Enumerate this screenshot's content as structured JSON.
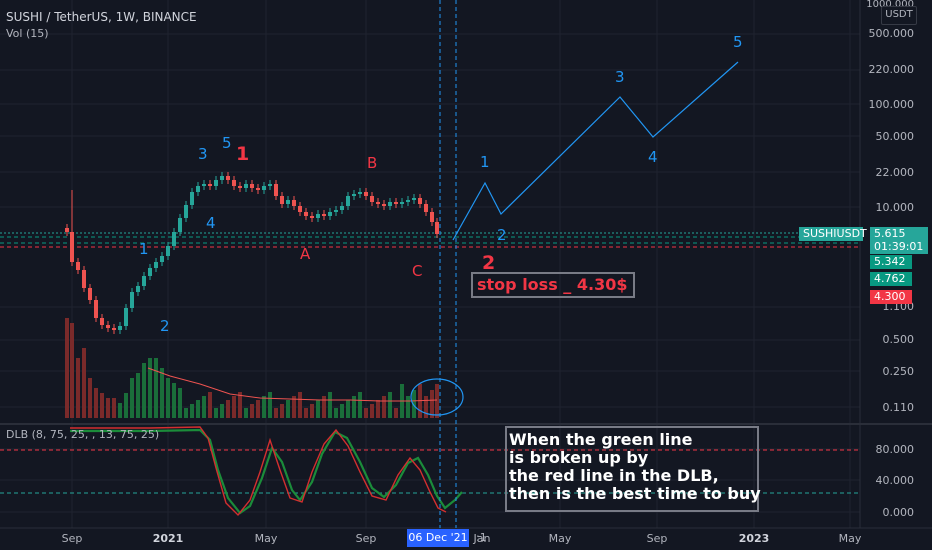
{
  "header": {
    "symbol_line": "SUSHI / TetherUS, 1W, BINANCE",
    "volume_line": "Vol (15)",
    "dlb_line": "DLB (8, 75, 25, , 13, 75, 25)"
  },
  "price_axis": {
    "unit_label": "USDT",
    "labels": [
      "1000.000",
      "500.000",
      "220.000",
      "100.000",
      "50.000",
      "22.000",
      "10.000",
      "1.100",
      "0.500",
      "0.250",
      "0.110"
    ]
  },
  "dlb_axis": {
    "labels": [
      "80.000",
      "40.000",
      "0.000"
    ]
  },
  "time_axis": {
    "labels": [
      "Sep",
      "2021",
      "May",
      "Sep",
      "Jan",
      "May",
      "Sep",
      "2023",
      "May"
    ],
    "crosshair_label": "06 Dec '21",
    "crosshair_suffix": ":1"
  },
  "price_badges": {
    "symbol": "SUSHIUSDT",
    "last_price": "5.615",
    "countdown": "01:39:01",
    "green_1": "5.342",
    "green_2": "4.762",
    "red": "4.300"
  },
  "annotations": {
    "stop_loss": "stop loss _ 4.30$",
    "note_lines": [
      "When the green line",
      "is broken up by",
      "the red line in the DLB,",
      "then is the best time to buy"
    ],
    "wave_labels_red": [
      "1",
      "B",
      "A",
      "C",
      "2"
    ],
    "wave_labels_blue": [
      "3",
      "5",
      "4",
      "1",
      "2",
      "1",
      "2",
      "3",
      "4",
      "5"
    ]
  },
  "colors": {
    "background": "#131722",
    "bull": "#26a69a",
    "bear": "#ef5350",
    "projection": "#2196f3",
    "red_label": "#f23645",
    "green_badge": "#089981",
    "axis_text": "#b2b5be"
  }
}
